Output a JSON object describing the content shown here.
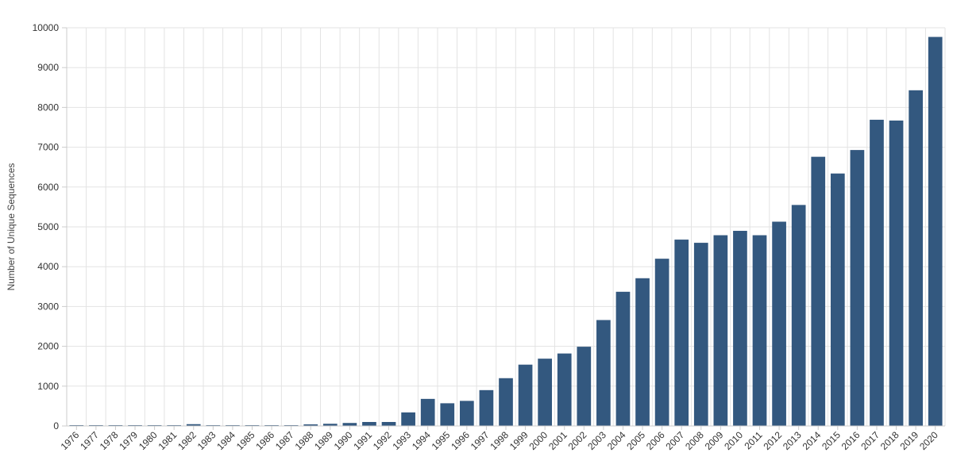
{
  "chart_data": {
    "type": "bar",
    "title": "",
    "xlabel": "",
    "ylabel": "Number of Unique Sequences",
    "ylim": [
      0,
      10000
    ],
    "yticks": [
      0,
      1000,
      2000,
      3000,
      4000,
      5000,
      6000,
      7000,
      8000,
      9000,
      10000
    ],
    "grid": true,
    "bar_color": "#33587f",
    "categories": [
      "1976",
      "1977",
      "1978",
      "1979",
      "1980",
      "1981",
      "1982",
      "1983",
      "1984",
      "1985",
      "1986",
      "1987",
      "1988",
      "1989",
      "1990",
      "1991",
      "1992",
      "1993",
      "1994",
      "1995",
      "1996",
      "1997",
      "1998",
      "1999",
      "2000",
      "2001",
      "2002",
      "2003",
      "2004",
      "2005",
      "2006",
      "2007",
      "2008",
      "2009",
      "2010",
      "2011",
      "2012",
      "2013",
      "2014",
      "2015",
      "2016",
      "2017",
      "2018",
      "2019",
      "2020"
    ],
    "values": [
      8,
      10,
      10,
      10,
      12,
      15,
      45,
      15,
      15,
      15,
      15,
      20,
      40,
      55,
      75,
      100,
      100,
      340,
      680,
      570,
      630,
      900,
      1200,
      1540,
      1690,
      1820,
      1990,
      2660,
      3370,
      3710,
      4200,
      4680,
      4600,
      4790,
      4900,
      4790,
      5130,
      5550,
      6760,
      6340,
      6930,
      7690,
      7670,
      8430,
      9770
    ]
  }
}
